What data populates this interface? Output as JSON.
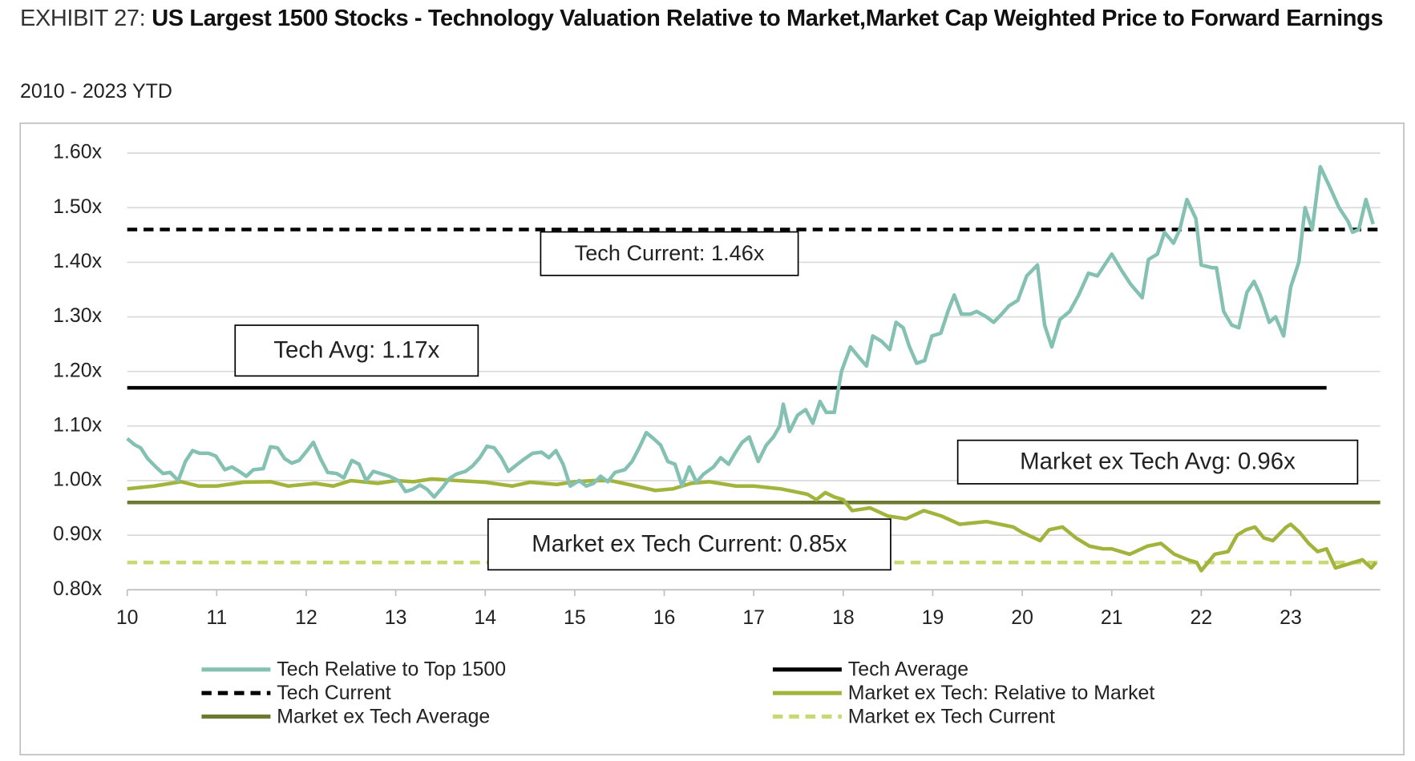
{
  "chart_data": {
    "type": "line",
    "title_prefix": "EXHIBIT 27:",
    "title": "US Largest 1500 Stocks - Technology Valuation Relative to Market,Market Cap Weighted Price to Forward Earnings",
    "subtitle": "2010 - 2023 YTD",
    "xlim": [
      10,
      24
    ],
    "xticks": [
      10,
      11,
      12,
      13,
      14,
      15,
      16,
      17,
      18,
      19,
      20,
      21,
      22,
      23
    ],
    "ylim": [
      0.8,
      1.6
    ],
    "yticks": [
      {
        "value": 0.8,
        "label": "0.80x"
      },
      {
        "value": 0.9,
        "label": "0.90x"
      },
      {
        "value": 1.0,
        "label": "1.00x"
      },
      {
        "value": 1.1,
        "label": "1.10x"
      },
      {
        "value": 1.2,
        "label": "1.20x"
      },
      {
        "value": 1.3,
        "label": "1.30x"
      },
      {
        "value": 1.4,
        "label": "1.40x"
      },
      {
        "value": 1.5,
        "label": "1.50x"
      },
      {
        "value": 1.6,
        "label": "1.60x"
      }
    ],
    "grid": true,
    "legend": "bottom",
    "series": [
      {
        "name": "Tech Relative to Top 1500",
        "color": "#84c1b2",
        "line_style": "solid",
        "x": [
          10,
          10.08,
          10.15,
          10.23,
          10.32,
          10.4,
          10.48,
          10.57,
          10.65,
          10.73,
          10.81,
          10.91,
          10.99,
          11.09,
          11.17,
          11.25,
          11.33,
          11.41,
          11.52,
          11.6,
          11.68,
          11.76,
          11.84,
          11.92,
          12.0,
          12.08,
          12.16,
          12.24,
          12.34,
          12.42,
          12.51,
          12.59,
          12.67,
          12.75,
          12.83,
          12.93,
          13.03,
          13.11,
          13.19,
          13.27,
          13.35,
          13.43,
          13.52,
          13.6,
          13.68,
          13.78,
          13.86,
          13.94,
          14.02,
          14.1,
          14.18,
          14.26,
          14.36,
          14.44,
          14.53,
          14.63,
          14.71,
          14.79,
          14.87,
          14.95,
          15.05,
          15.13,
          15.21,
          15.29,
          15.37,
          15.45,
          15.56,
          15.64,
          15.72,
          15.8,
          15.88,
          15.96,
          16.04,
          16.12,
          16.2,
          16.28,
          16.36,
          16.44,
          16.55,
          16.63,
          16.72,
          16.79,
          16.87,
          16.95,
          17.05,
          17.14,
          17.22,
          17.29,
          17.33,
          17.4,
          17.49,
          17.58,
          17.66,
          17.74,
          17.81,
          17.9,
          17.98,
          18.08,
          18.18,
          18.26,
          18.33,
          18.43,
          18.52,
          18.59,
          18.67,
          18.74,
          18.82,
          18.91,
          18.99,
          19.09,
          19.17,
          19.24,
          19.32,
          19.42,
          19.49,
          19.6,
          19.68,
          19.77,
          19.85,
          19.95,
          20.05,
          20.17,
          20.25,
          20.33,
          20.42,
          20.53,
          20.63,
          20.74,
          20.84,
          21.0,
          21.11,
          21.21,
          21.34,
          21.41,
          21.51,
          21.59,
          21.69,
          21.76,
          21.84,
          21.94,
          22.0,
          22.12,
          22.17,
          22.25,
          22.34,
          22.42,
          22.51,
          22.59,
          22.66,
          22.76,
          22.83,
          22.92,
          23.0,
          23.09,
          23.16,
          23.24,
          23.33,
          23.43,
          23.54,
          23.64,
          23.69,
          23.76,
          23.84,
          23.92
        ],
        "values": [
          1.077,
          1.066,
          1.06,
          1.04,
          1.025,
          1.013,
          1.015,
          1.0,
          1.035,
          1.055,
          1.05,
          1.05,
          1.045,
          1.02,
          1.025,
          1.017,
          1.008,
          1.02,
          1.022,
          1.062,
          1.06,
          1.04,
          1.032,
          1.037,
          1.053,
          1.07,
          1.04,
          1.015,
          1.013,
          1.005,
          1.037,
          1.03,
          1.0,
          1.017,
          1.013,
          1.008,
          1.0,
          0.98,
          0.984,
          0.992,
          0.984,
          0.97,
          0.987,
          1.004,
          1.012,
          1.017,
          1.027,
          1.042,
          1.063,
          1.06,
          1.042,
          1.017,
          1.03,
          1.04,
          1.05,
          1.052,
          1.042,
          1.055,
          1.03,
          0.99,
          1.0,
          0.99,
          0.995,
          1.008,
          0.998,
          1.015,
          1.02,
          1.035,
          1.06,
          1.088,
          1.077,
          1.065,
          1.035,
          1.03,
          0.99,
          1.025,
          0.997,
          1.012,
          1.025,
          1.042,
          1.03,
          1.05,
          1.07,
          1.08,
          1.035,
          1.065,
          1.08,
          1.1,
          1.14,
          1.09,
          1.12,
          1.13,
          1.105,
          1.145,
          1.125,
          1.125,
          1.2,
          1.245,
          1.225,
          1.21,
          1.265,
          1.255,
          1.24,
          1.29,
          1.28,
          1.245,
          1.215,
          1.22,
          1.265,
          1.27,
          1.31,
          1.34,
          1.305,
          1.305,
          1.31,
          1.3,
          1.29,
          1.305,
          1.32,
          1.33,
          1.375,
          1.395,
          1.285,
          1.245,
          1.295,
          1.31,
          1.34,
          1.38,
          1.375,
          1.415,
          1.385,
          1.36,
          1.335,
          1.405,
          1.415,
          1.455,
          1.435,
          1.46,
          1.515,
          1.48,
          1.395,
          1.39,
          1.39,
          1.31,
          1.285,
          1.28,
          1.345,
          1.365,
          1.34,
          1.29,
          1.3,
          1.265,
          1.355,
          1.4,
          1.5,
          1.46,
          1.575,
          1.54,
          1.5,
          1.475,
          1.455,
          1.46,
          1.515,
          1.47
        ]
      },
      {
        "name": "Tech Average",
        "color": "#000000",
        "line_style": "solid",
        "x": [
          10,
          23.4
        ],
        "values": [
          1.17,
          1.17
        ]
      },
      {
        "name": "Tech Current",
        "color": "#000000",
        "line_style": "dashed",
        "x": [
          10,
          24
        ],
        "values": [
          1.46,
          1.46
        ]
      },
      {
        "name": "Market ex Tech: Relative to Market",
        "color": "#a2b43c",
        "line_style": "solid",
        "x": [
          10,
          10.3,
          10.6,
          10.8,
          11.0,
          11.3,
          11.6,
          11.8,
          12.1,
          12.3,
          12.5,
          12.8,
          13.0,
          13.2,
          13.4,
          13.7,
          14.0,
          14.3,
          14.5,
          14.8,
          15.0,
          15.2,
          15.4,
          15.6,
          15.9,
          16.1,
          16.3,
          16.5,
          16.8,
          17.0,
          17.3,
          17.6,
          17.7,
          17.8,
          17.9,
          18.0,
          18.1,
          18.3,
          18.5,
          18.7,
          18.9,
          19.1,
          19.3,
          19.6,
          19.9,
          20.0,
          20.2,
          20.3,
          20.45,
          20.6,
          20.75,
          20.9,
          21.0,
          21.2,
          21.4,
          21.55,
          21.7,
          21.85,
          21.95,
          22.0,
          22.15,
          22.3,
          22.4,
          22.5,
          22.6,
          22.7,
          22.8,
          22.95,
          23.0,
          23.1,
          23.2,
          23.3,
          23.4,
          23.5,
          23.6,
          23.7,
          23.8,
          23.9,
          23.95
        ],
        "values": [
          0.985,
          0.99,
          0.998,
          0.99,
          0.99,
          0.997,
          0.998,
          0.99,
          0.995,
          0.99,
          1.0,
          0.995,
          1.0,
          0.998,
          1.003,
          1.0,
          0.997,
          0.99,
          0.997,
          0.993,
          0.998,
          1.0,
          1.0,
          0.993,
          0.982,
          0.985,
          0.995,
          0.998,
          0.99,
          0.99,
          0.985,
          0.975,
          0.965,
          0.978,
          0.97,
          0.965,
          0.945,
          0.95,
          0.935,
          0.93,
          0.945,
          0.935,
          0.92,
          0.925,
          0.915,
          0.905,
          0.89,
          0.91,
          0.915,
          0.895,
          0.88,
          0.875,
          0.875,
          0.865,
          0.88,
          0.885,
          0.865,
          0.855,
          0.85,
          0.835,
          0.865,
          0.87,
          0.9,
          0.91,
          0.915,
          0.895,
          0.89,
          0.915,
          0.92,
          0.905,
          0.885,
          0.87,
          0.875,
          0.84,
          0.845,
          0.85,
          0.855,
          0.84,
          0.85
        ]
      },
      {
        "name": "Market ex Tech Average",
        "color": "#6b7a2f",
        "line_style": "solid",
        "x": [
          10,
          24
        ],
        "values": [
          0.96,
          0.96
        ]
      },
      {
        "name": "Market ex Tech Current",
        "color": "#c8d872",
        "line_style": "dashed",
        "x": [
          10,
          24
        ],
        "values": [
          0.85,
          0.85
        ]
      }
    ],
    "annotations": [
      {
        "text": "Tech Current: 1.46x"
      },
      {
        "text": "Tech Avg: 1.17x"
      },
      {
        "text": "Market ex Tech Avg: 0.96x"
      },
      {
        "text": "Market ex Tech Current: 0.85x"
      }
    ]
  }
}
